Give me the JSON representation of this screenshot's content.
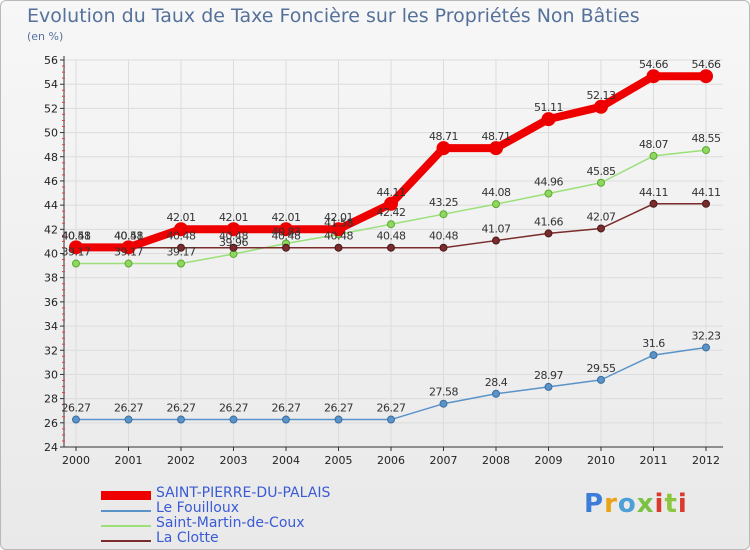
{
  "page": {
    "title": "Evolution du Taux de Taxe Foncière sur les Propriétés Non Bâties",
    "unit": "(en %)",
    "logo": "Proxiti"
  },
  "colors": {
    "accent": "#55719a",
    "legend_text": "#3a5bd6",
    "logo_letters": [
      "#3b7dd8",
      "#e8a317",
      "#4d9fd6",
      "#7cc242",
      "#d93a2b",
      "#8cc63f",
      "#d93a2b"
    ]
  },
  "chart_data": {
    "type": "line",
    "title": "Evolution du Taux de Taxe Foncière sur les Propriétés Non Bâties",
    "ylabel": "(en %)",
    "xlabel": "",
    "ylim": [
      24,
      56
    ],
    "yticks": [
      24,
      26,
      28,
      30,
      32,
      34,
      36,
      38,
      40,
      42,
      44,
      46,
      48,
      50,
      52,
      54,
      56
    ],
    "grid": true,
    "categories": [
      "2000",
      "2001",
      "2002",
      "2003",
      "2004",
      "2005",
      "2006",
      "2007",
      "2008",
      "2009",
      "2010",
      "2011",
      "2012"
    ],
    "series": [
      {
        "name": "SAINT-PIERRE-DU-PALAIS",
        "color": "#ee0000",
        "values": [
          40.51,
          40.51,
          42.01,
          42.01,
          42.01,
          42.01,
          44.11,
          48.71,
          48.71,
          51.11,
          52.13,
          54.66,
          54.66
        ],
        "labels": [
          "40.51",
          "40.51",
          "42.01",
          "42.01",
          "42.01",
          "42.01",
          "44.11",
          "48.71",
          "48.71",
          "51.11",
          "52.13",
          "54.66",
          "54.66"
        ]
      },
      {
        "name": "Le Fouilloux",
        "color": "#5a93c8",
        "values": [
          26.27,
          26.27,
          26.27,
          26.27,
          26.27,
          26.27,
          26.27,
          27.58,
          28.4,
          28.97,
          29.55,
          31.6,
          32.23
        ],
        "labels": [
          "26.27",
          "26.27",
          "26.27",
          "26.27",
          "26.27",
          "26.27",
          "26.27",
          "27.58",
          "28.4",
          "28.97",
          "29.55",
          "31.6",
          "32.23"
        ]
      },
      {
        "name": "Saint-Martin-de-Coux",
        "color": "#9be07a",
        "values": [
          39.17,
          39.17,
          39.17,
          39.96,
          40.83,
          41.58,
          42.42,
          43.25,
          44.08,
          44.96,
          45.85,
          48.07,
          48.55
        ],
        "labels": [
          "39.17",
          "39.17",
          "39.17",
          "39.96",
          "40.83",
          "41.58",
          "42.42",
          "43.25",
          "44.08",
          "44.96",
          "45.85",
          "48.07",
          "48.55"
        ]
      },
      {
        "name": "La Clotte",
        "color": "#7a2c2c",
        "values": [
          40.48,
          40.48,
          40.48,
          40.48,
          40.48,
          40.48,
          40.48,
          40.48,
          41.07,
          41.66,
          42.07,
          44.11,
          44.11
        ],
        "labels": [
          "40.48",
          "40.48",
          "40.48",
          "40.48",
          "40.48",
          "40.48",
          "40.48",
          "40.48",
          "41.07",
          "41.66",
          "42.07",
          "44.11",
          "44.11"
        ]
      }
    ]
  }
}
